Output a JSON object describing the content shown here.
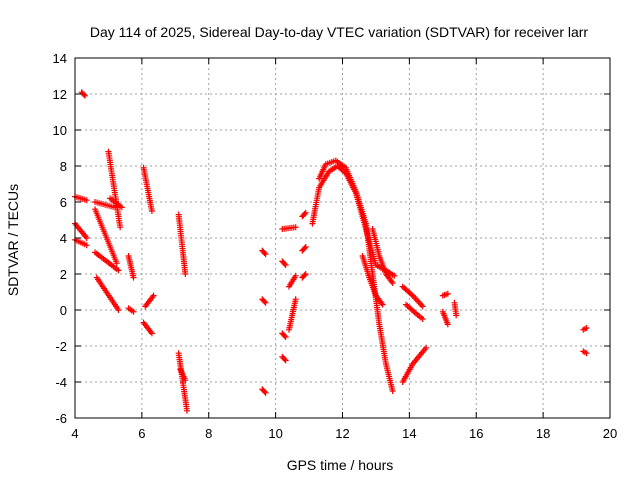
{
  "chart_data": {
    "type": "scatter",
    "title": "Day 114 of 2025, Sidereal Day-to-day VTEC variation (SDTVAR) for receiver larr",
    "xlabel": "GPS time / hours",
    "ylabel": "SDTVAR / TECUs",
    "xlim": [
      4,
      20
    ],
    "ylim": [
      -6,
      14
    ],
    "xticks": [
      "4",
      "6",
      "8",
      "10",
      "12",
      "14",
      "16",
      "18",
      "20"
    ],
    "yticks": [
      "-6",
      "-4",
      "-2",
      "0",
      "2",
      "4",
      "6",
      "8",
      "10",
      "12",
      "14"
    ],
    "grid": true,
    "marker": "plus",
    "color": "#ff0000",
    "series": [
      {
        "name": "s01",
        "x": [
          4.0,
          4.35
        ],
        "y": [
          6.3,
          6.1
        ]
      },
      {
        "name": "s02",
        "x": [
          4.0,
          4.35
        ],
        "y": [
          3.9,
          3.6
        ]
      },
      {
        "name": "s03",
        "x": [
          4.0,
          4.35
        ],
        "y": [
          4.8,
          4.0
        ]
      },
      {
        "name": "s04",
        "x": [
          4.2,
          4.3
        ],
        "y": [
          12.1,
          11.9
        ]
      },
      {
        "name": "s05",
        "x": [
          4.6,
          5.2
        ],
        "y": [
          6.0,
          5.7
        ]
      },
      {
        "name": "s06",
        "x": [
          4.6,
          5.25
        ],
        "y": [
          5.6,
          2.6
        ]
      },
      {
        "name": "s07",
        "x": [
          4.6,
          5.3
        ],
        "y": [
          3.2,
          2.2
        ]
      },
      {
        "name": "s08",
        "x": [
          4.65,
          5.3
        ],
        "y": [
          1.8,
          0.0
        ]
      },
      {
        "name": "s09",
        "x": [
          5.0,
          5.35
        ],
        "y": [
          8.8,
          4.6
        ]
      },
      {
        "name": "s10",
        "x": [
          5.05,
          5.4
        ],
        "y": [
          6.2,
          5.7
        ]
      },
      {
        "name": "s11",
        "x": [
          5.6,
          5.75
        ],
        "y": [
          3.0,
          1.8
        ]
      },
      {
        "name": "s12",
        "x": [
          5.6,
          5.75
        ],
        "y": [
          0.1,
          -0.1
        ]
      },
      {
        "name": "s13",
        "x": [
          6.05,
          6.3
        ],
        "y": [
          7.9,
          5.5
        ]
      },
      {
        "name": "s14",
        "x": [
          6.1,
          6.35
        ],
        "y": [
          0.2,
          0.8
        ]
      },
      {
        "name": "s15",
        "x": [
          6.05,
          6.3
        ],
        "y": [
          -0.7,
          -1.3
        ]
      },
      {
        "name": "s16",
        "x": [
          7.1,
          7.3
        ],
        "y": [
          5.3,
          2.0
        ]
      },
      {
        "name": "s17",
        "x": [
          7.1,
          7.35
        ],
        "y": [
          -2.4,
          -5.6
        ]
      },
      {
        "name": "s18",
        "x": [
          7.15,
          7.3
        ],
        "y": [
          -3.3,
          -3.9
        ]
      },
      {
        "name": "s19",
        "x": [
          9.6,
          9.7
        ],
        "y": [
          3.3,
          3.1
        ]
      },
      {
        "name": "s20",
        "x": [
          9.6,
          9.7
        ],
        "y": [
          0.6,
          0.4
        ]
      },
      {
        "name": "s21",
        "x": [
          9.6,
          9.7
        ],
        "y": [
          -4.4,
          -4.6
        ]
      },
      {
        "name": "s22",
        "x": [
          10.2,
          10.6
        ],
        "y": [
          4.5,
          4.6
        ]
      },
      {
        "name": "s23",
        "x": [
          10.2,
          10.3
        ],
        "y": [
          2.7,
          2.5
        ]
      },
      {
        "name": "s24",
        "x": [
          10.2,
          10.3
        ],
        "y": [
          -1.3,
          -1.5
        ]
      },
      {
        "name": "s25",
        "x": [
          10.2,
          10.3
        ],
        "y": [
          -2.6,
          -2.8
        ]
      },
      {
        "name": "s26",
        "x": [
          10.4,
          10.6
        ],
        "y": [
          -1.1,
          0.6
        ]
      },
      {
        "name": "s27",
        "x": [
          10.4,
          10.6
        ],
        "y": [
          1.3,
          1.9
        ]
      },
      {
        "name": "s28",
        "x": [
          10.8,
          10.9
        ],
        "y": [
          5.2,
          5.4
        ]
      },
      {
        "name": "s29",
        "x": [
          10.8,
          10.9
        ],
        "y": [
          3.3,
          3.5
        ]
      },
      {
        "name": "s30",
        "x": [
          10.8,
          10.9
        ],
        "y": [
          1.8,
          2.0
        ]
      },
      {
        "name": "s31",
        "x": [
          11.1,
          11.3,
          11.6,
          11.85,
          12.1,
          12.4,
          12.7,
          13.0,
          13.3,
          13.55
        ],
        "y": [
          4.8,
          6.8,
          7.7,
          8.0,
          7.6,
          6.5,
          4.5,
          2.5,
          2.2,
          1.9
        ]
      },
      {
        "name": "s32",
        "x": [
          11.3,
          11.5,
          11.8,
          12.1,
          12.4,
          12.7,
          12.9,
          13.1,
          13.3,
          13.5
        ],
        "y": [
          7.3,
          8.1,
          8.3,
          7.9,
          6.6,
          4.8,
          2.0,
          -0.8,
          -3.0,
          -4.5
        ]
      },
      {
        "name": "s33",
        "x": [
          12.9,
          13.1,
          13.3,
          13.5
        ],
        "y": [
          4.5,
          3.0,
          2.0,
          1.5
        ]
      },
      {
        "name": "s34",
        "x": [
          12.6,
          12.8,
          13.0,
          13.2
        ],
        "y": [
          3.0,
          1.8,
          0.8,
          0.3
        ]
      },
      {
        "name": "s35",
        "x": [
          13.8,
          14.1,
          14.5
        ],
        "y": [
          -4.0,
          -3.0,
          -2.1
        ]
      },
      {
        "name": "s36",
        "x": [
          13.8,
          14.1,
          14.4
        ],
        "y": [
          1.3,
          0.8,
          0.2
        ]
      },
      {
        "name": "s37",
        "x": [
          13.9,
          14.2,
          14.4
        ],
        "y": [
          0.3,
          -0.2,
          -0.5
        ]
      },
      {
        "name": "s38",
        "x": [
          15.0,
          15.15
        ],
        "y": [
          0.8,
          0.9
        ]
      },
      {
        "name": "s39",
        "x": [
          15.0,
          15.15
        ],
        "y": [
          -0.1,
          -0.8
        ]
      },
      {
        "name": "s40",
        "x": [
          15.35,
          15.4
        ],
        "y": [
          0.4,
          -0.3
        ]
      },
      {
        "name": "s41",
        "x": [
          19.2,
          19.3
        ],
        "y": [
          -1.1,
          -1.0
        ]
      },
      {
        "name": "s42",
        "x": [
          19.2,
          19.3
        ],
        "y": [
          -2.3,
          -2.4
        ]
      }
    ]
  }
}
